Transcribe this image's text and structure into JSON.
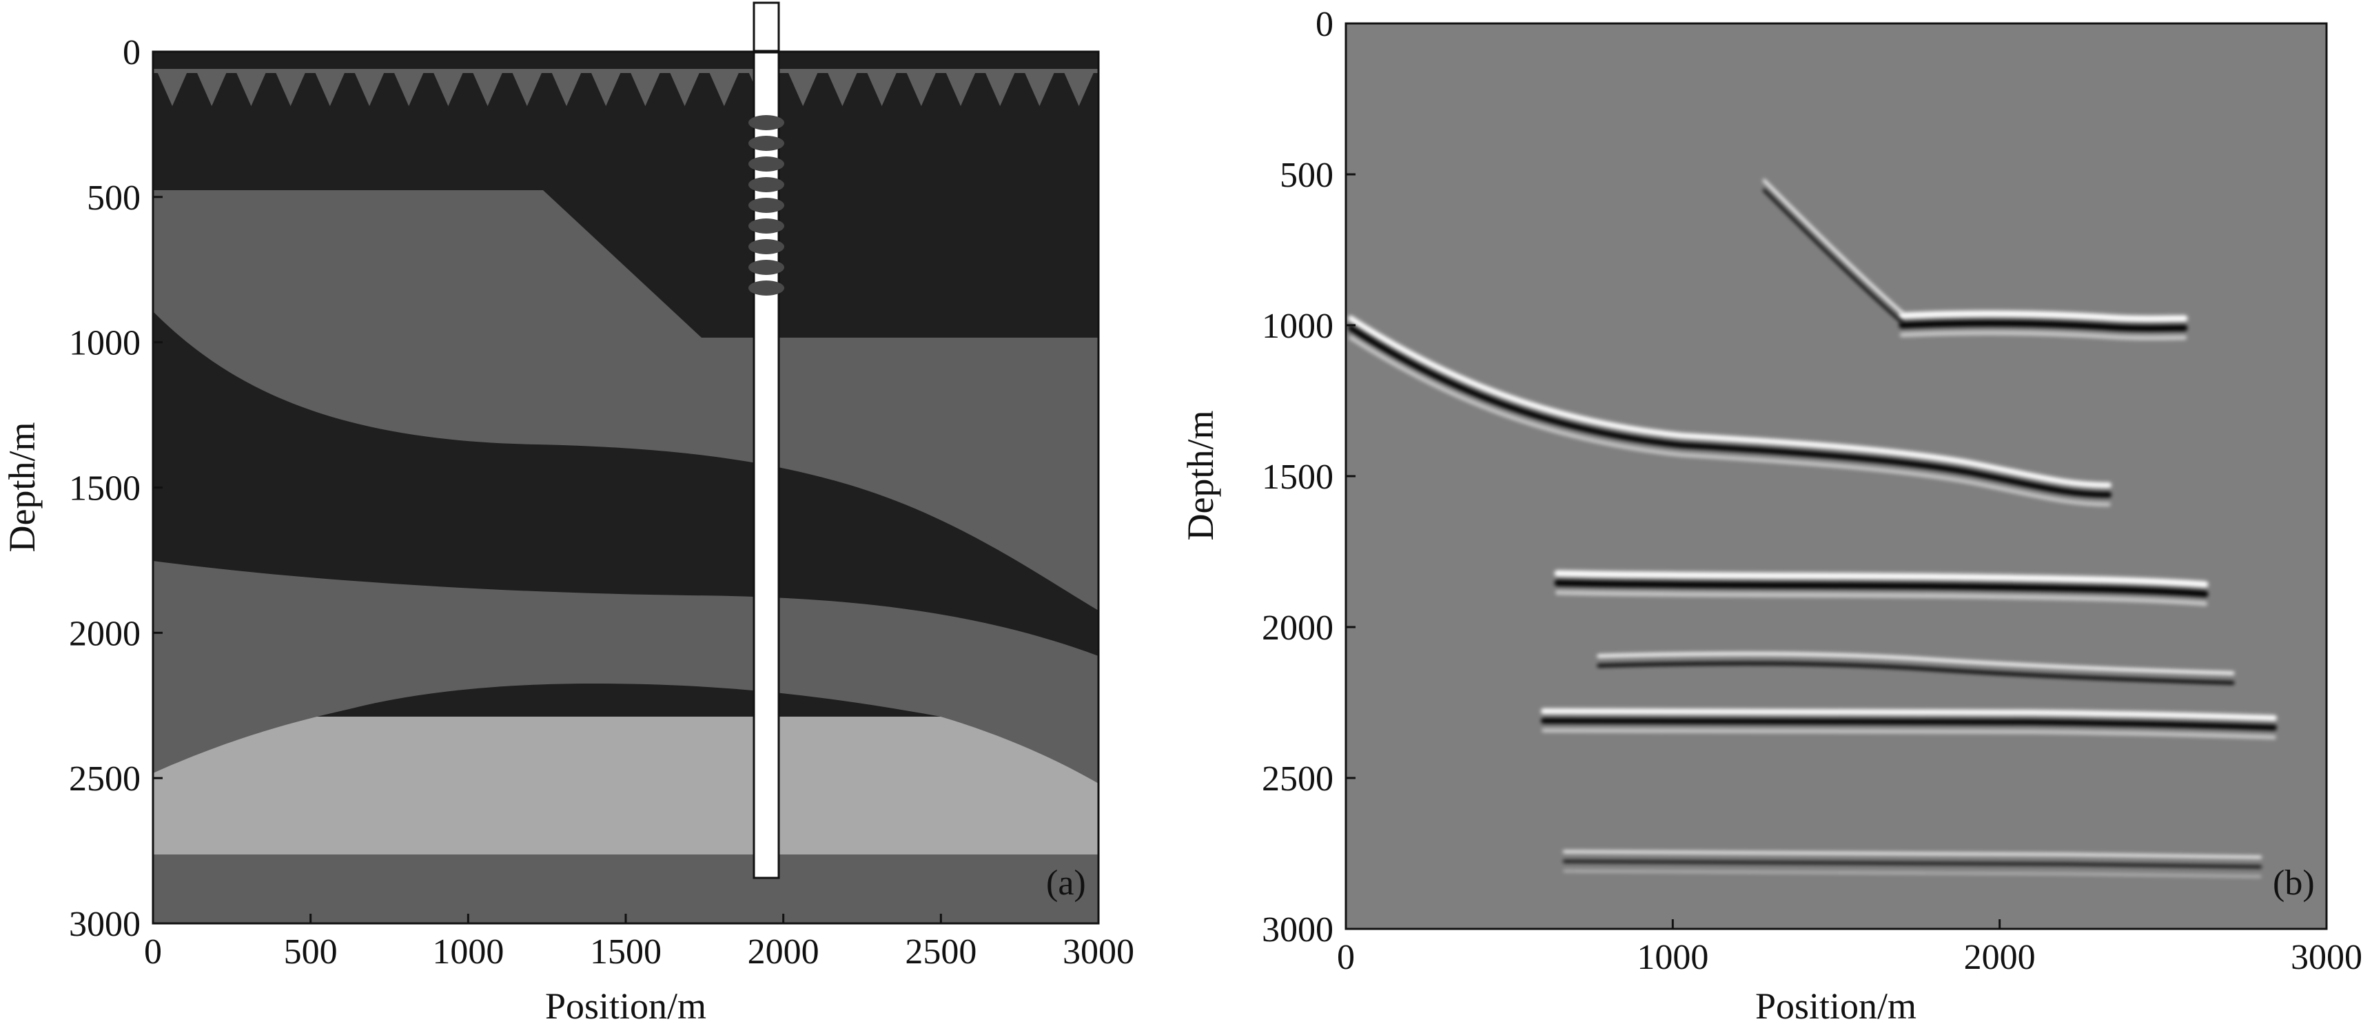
{
  "figure": {
    "panels": [
      {
        "id": "a",
        "panel_label": "(a)",
        "x_axis": {
          "label": "Position/m",
          "range": [
            0,
            3000
          ],
          "ticks": [
            "0",
            "500",
            "1000",
            "1500",
            "2000",
            "2500",
            "3000"
          ]
        },
        "y_axis": {
          "label": "Depth/m",
          "range": [
            0,
            3000
          ],
          "inverted": true,
          "ticks": [
            "0",
            "500",
            "1000",
            "1500",
            "2000",
            "2500",
            "3000"
          ]
        },
        "content": "layered velocity model with surface receiver triangles, a vertical well near x=1950 m and sources along the well",
        "colors": {
          "dark_layer": "#1f1f1f",
          "mid_layer": "#5f5f5f",
          "light_layer": "#a9a9a9",
          "well": "#ffffff"
        }
      },
      {
        "id": "b",
        "panel_label": "(b)",
        "x_axis": {
          "label": "Position/m",
          "range": [
            0,
            3000
          ],
          "ticks": [
            "0",
            "1000",
            "2000",
            "3000"
          ]
        },
        "y_axis": {
          "label": "Depth/m",
          "range": [
            0,
            3000
          ],
          "inverted": true,
          "ticks": [
            "0",
            "500",
            "1000",
            "1500",
            "2000",
            "2500",
            "3000"
          ]
        },
        "content": "migrated seismic image with reflector events on gray background",
        "colors": {
          "background": "#7f7f7f"
        }
      }
    ]
  }
}
